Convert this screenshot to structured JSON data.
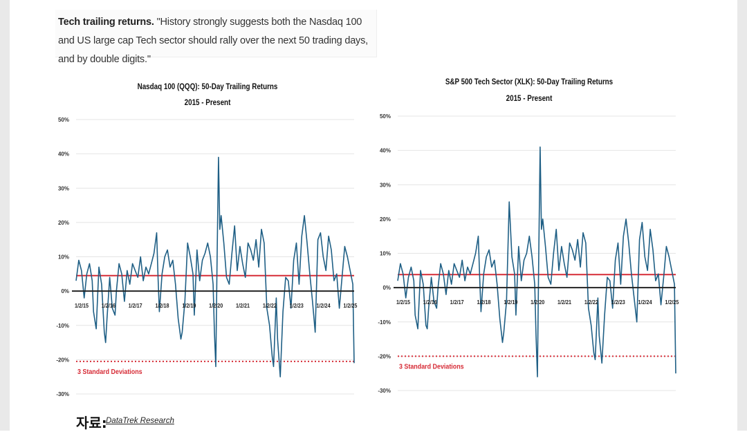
{
  "quote": {
    "lead": "Tech trailing returns.",
    "text": " \"History strongly suggests both the Nasdaq 100 and US large cap Tech sector should rally over the next 50 trading days, and by double digits.\""
  },
  "source": {
    "label": "자료:",
    "link_text": "DataTrek Research"
  },
  "colors": {
    "series": "#1f5f85",
    "mean": "#d62b36",
    "zero": "#222222",
    "grid": "#e4e4e4"
  },
  "chart_data": [
    {
      "type": "line",
      "title": "Nasdaq 100 (QQQ): 50-Day Trailing Returns",
      "subtitle": "2015 - Present",
      "ylim": [
        -30,
        50
      ],
      "y_ticks": [
        "-30%",
        "-20%",
        "-10%",
        "0%",
        "10%",
        "20%",
        "30%",
        "40%",
        "50%"
      ],
      "x_ticks": [
        "1/2/15",
        "1/2/16",
        "1/2/17",
        "1/2/18",
        "1/2/19",
        "1/2/20",
        "1/2/21",
        "1/2/22",
        "1/2/23",
        "1/2/24",
        "1/2/25"
      ],
      "x_range": [
        2015.0,
        2025.35
      ],
      "grid": true,
      "reference_lines": [
        {
          "type": "mean",
          "value": 4.5
        },
        {
          "type": "zero",
          "value": 0
        },
        {
          "type": "threshold",
          "value": -20.5,
          "label": "3 Standard Deviations"
        }
      ],
      "series": [
        {
          "x": [
            2015.0,
            2015.1,
            2015.2,
            2015.3,
            2015.4,
            2015.5,
            2015.6,
            2015.65,
            2015.75,
            2015.85,
            2015.95,
            2016.05,
            2016.1,
            2016.15,
            2016.25,
            2016.35,
            2016.45,
            2016.5,
            2016.6,
            2016.7,
            2016.8,
            2016.9,
            2017.0,
            2017.1,
            2017.2,
            2017.3,
            2017.4,
            2017.5,
            2017.6,
            2017.7,
            2017.8,
            2017.9,
            2018.0,
            2018.05,
            2018.1,
            2018.2,
            2018.3,
            2018.4,
            2018.5,
            2018.6,
            2018.7,
            2018.8,
            2018.9,
            2018.95,
            2019.05,
            2019.15,
            2019.25,
            2019.35,
            2019.4,
            2019.5,
            2019.6,
            2019.7,
            2019.8,
            2019.9,
            2020.0,
            2020.1,
            2020.15,
            2020.2,
            2020.25,
            2020.3,
            2020.35,
            2020.4,
            2020.5,
            2020.6,
            2020.7,
            2020.8,
            2020.9,
            2021.0,
            2021.1,
            2021.2,
            2021.3,
            2021.4,
            2021.5,
            2021.6,
            2021.7,
            2021.8,
            2021.9,
            2022.0,
            2022.1,
            2022.2,
            2022.3,
            2022.35,
            2022.45,
            2022.5,
            2022.6,
            2022.7,
            2022.8,
            2022.9,
            2023.0,
            2023.1,
            2023.2,
            2023.3,
            2023.4,
            2023.5,
            2023.6,
            2023.7,
            2023.8,
            2023.9,
            2024.0,
            2024.1,
            2024.2,
            2024.3,
            2024.4,
            2024.5,
            2024.6,
            2024.7,
            2024.8,
            2024.9,
            2025.0,
            2025.1,
            2025.2,
            2025.3,
            2025.35
          ],
          "y": [
            3,
            9,
            6,
            -2,
            5,
            8,
            3,
            -6,
            -11,
            7,
            2,
            -12,
            -15,
            -8,
            4,
            -5,
            -7,
            0,
            8,
            5,
            -3,
            6,
            2,
            8,
            6,
            4,
            10,
            3,
            7,
            5,
            8,
            11,
            17,
            4,
            -6,
            5,
            10,
            12,
            7,
            9,
            2,
            -8,
            -14,
            -12,
            -3,
            14,
            10,
            5,
            -7,
            12,
            3,
            9,
            11,
            14,
            10,
            2,
            -12,
            -22,
            10,
            39,
            18,
            22,
            14,
            4,
            2,
            11,
            19,
            6,
            13,
            8,
            4,
            14,
            12,
            9,
            15,
            7,
            18,
            14,
            -5,
            -10,
            -19,
            -22,
            -2,
            -14,
            -25,
            -6,
            4,
            3,
            -5,
            9,
            14,
            2,
            16,
            22,
            14,
            5,
            -3,
            -12,
            15,
            17,
            10,
            6,
            16,
            12,
            3,
            5,
            -5,
            4,
            13,
            10,
            6,
            2,
            -21
          ]
        }
      ]
    },
    {
      "type": "line",
      "title": "S&P 500 Tech Sector (XLK): 50-Day Trailing Returns",
      "subtitle": "2015 - Present",
      "ylim": [
        -30,
        50
      ],
      "y_ticks": [
        "-30%",
        "-20%",
        "-10%",
        "0%",
        "10%",
        "20%",
        "30%",
        "40%",
        "50%"
      ],
      "x_ticks": [
        "1/2/15",
        "1/2/16",
        "1/2/17",
        "1/2/18",
        "1/2/19",
        "1/2/20",
        "1/2/21",
        "1/2/22",
        "1/2/23",
        "1/2/24",
        "1/2/25"
      ],
      "x_range": [
        2015.0,
        2025.35
      ],
      "grid": true,
      "reference_lines": [
        {
          "type": "mean",
          "value": 3.8
        },
        {
          "type": "zero",
          "value": 0
        },
        {
          "type": "threshold",
          "value": -20,
          "label": "3 Standard Deviations"
        }
      ],
      "series": [
        {
          "x": [
            2015.0,
            2015.1,
            2015.2,
            2015.3,
            2015.4,
            2015.5,
            2015.6,
            2015.65,
            2015.75,
            2015.85,
            2015.95,
            2016.05,
            2016.1,
            2016.15,
            2016.25,
            2016.35,
            2016.45,
            2016.5,
            2016.6,
            2016.7,
            2016.8,
            2016.9,
            2017.0,
            2017.1,
            2017.2,
            2017.3,
            2017.4,
            2017.5,
            2017.6,
            2017.7,
            2017.8,
            2017.9,
            2018.0,
            2018.05,
            2018.1,
            2018.2,
            2018.3,
            2018.4,
            2018.5,
            2018.6,
            2018.7,
            2018.8,
            2018.9,
            2018.95,
            2019.05,
            2019.15,
            2019.25,
            2019.35,
            2019.4,
            2019.5,
            2019.6,
            2019.7,
            2019.8,
            2019.9,
            2020.0,
            2020.1,
            2020.15,
            2020.2,
            2020.25,
            2020.3,
            2020.35,
            2020.4,
            2020.5,
            2020.6,
            2020.7,
            2020.8,
            2020.9,
            2021.0,
            2021.1,
            2021.2,
            2021.3,
            2021.4,
            2021.5,
            2021.6,
            2021.7,
            2021.8,
            2021.9,
            2022.0,
            2022.1,
            2022.2,
            2022.3,
            2022.35,
            2022.45,
            2022.5,
            2022.6,
            2022.7,
            2022.8,
            2022.9,
            2023.0,
            2023.1,
            2023.2,
            2023.3,
            2023.4,
            2023.5,
            2023.6,
            2023.7,
            2023.8,
            2023.9,
            2024.0,
            2024.1,
            2024.2,
            2024.3,
            2024.4,
            2024.5,
            2024.6,
            2024.7,
            2024.8,
            2024.9,
            2025.0,
            2025.1,
            2025.2,
            2025.3,
            2025.35
          ],
          "y": [
            2,
            7,
            4,
            -3,
            3,
            6,
            2,
            -8,
            -12,
            5,
            1,
            -11,
            -12,
            -6,
            3,
            -4,
            -6,
            0,
            7,
            4,
            -2,
            5,
            1,
            7,
            5,
            3,
            8,
            2,
            6,
            4,
            7,
            10,
            15,
            3,
            -7,
            4,
            9,
            11,
            6,
            8,
            1,
            -9,
            -16,
            -13,
            -4,
            25,
            9,
            4,
            -8,
            12,
            2,
            8,
            10,
            15,
            9,
            1,
            -14,
            -26,
            9,
            41,
            17,
            20,
            12,
            3,
            1,
            10,
            17,
            5,
            12,
            7,
            3,
            13,
            11,
            8,
            14,
            6,
            16,
            13,
            -6,
            -11,
            -19,
            -21,
            -3,
            -14,
            -22,
            -8,
            3,
            2,
            -6,
            8,
            13,
            1,
            15,
            20,
            13,
            4,
            -3,
            -10,
            14,
            19,
            9,
            5,
            17,
            11,
            2,
            4,
            -5,
            3,
            12,
            9,
            5,
            1,
            -25
          ]
        }
      ]
    }
  ]
}
